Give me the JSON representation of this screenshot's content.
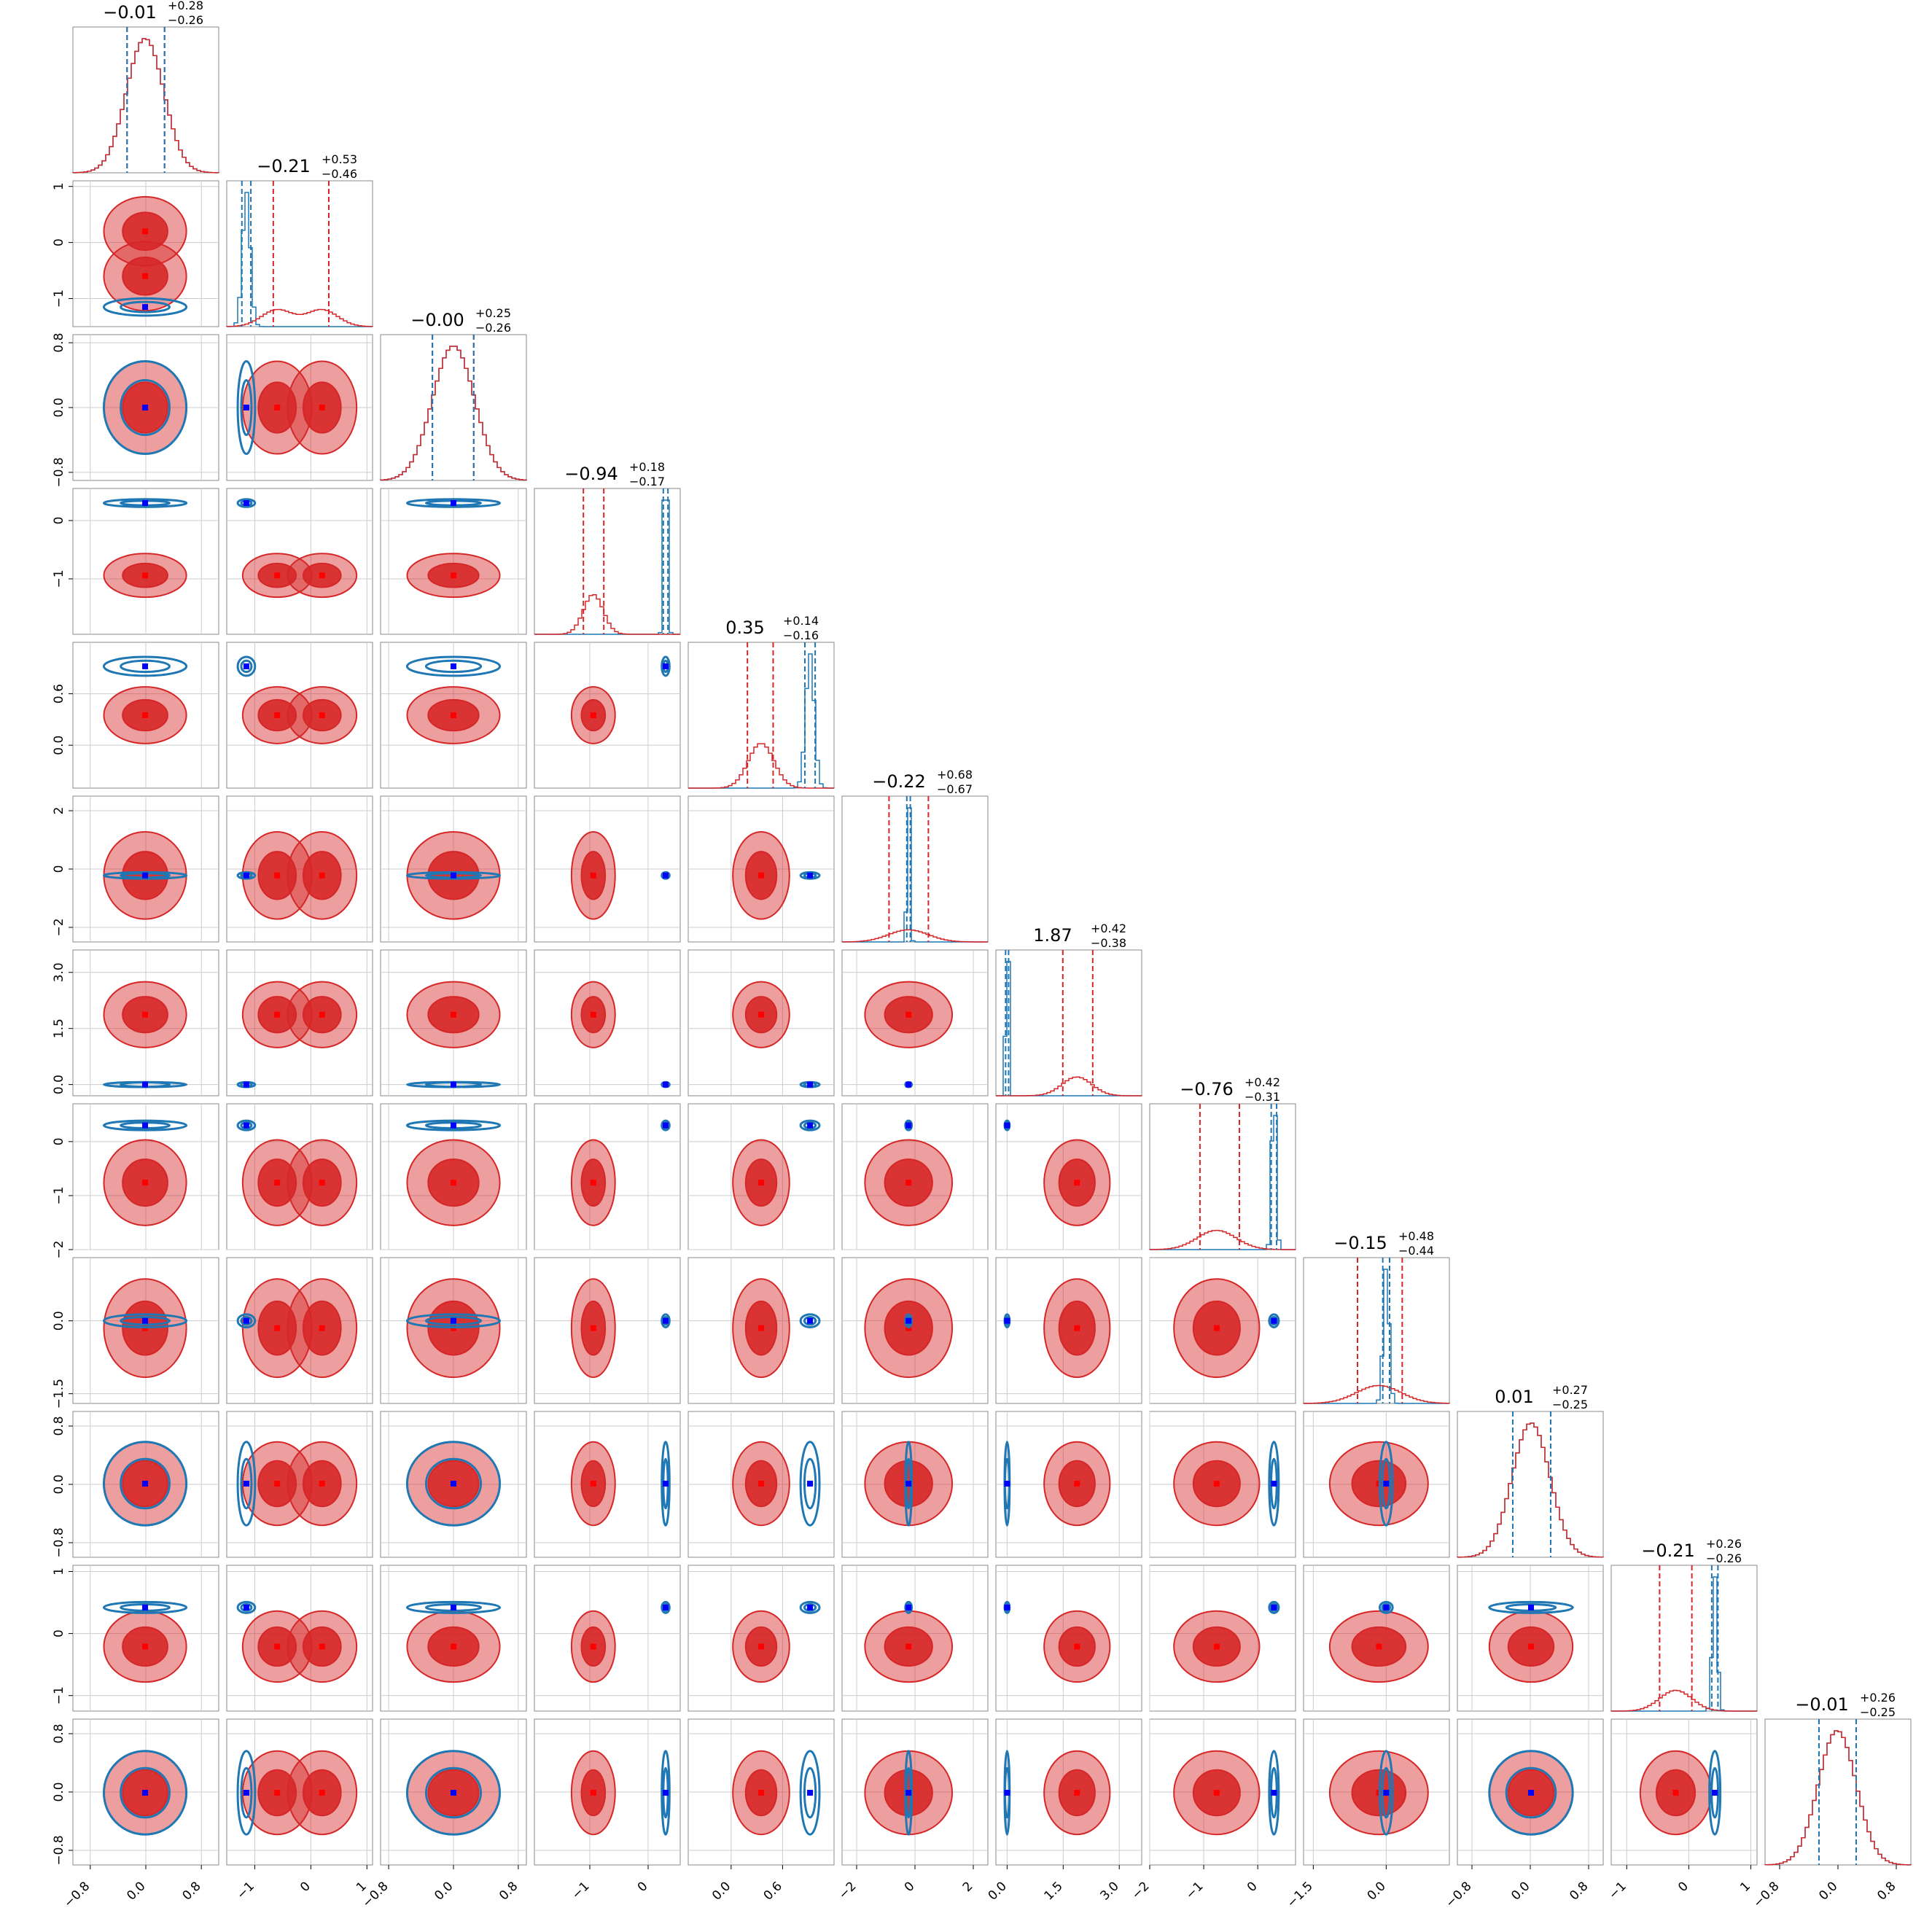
{
  "chart_data": {
    "type": "corner",
    "n_params": 12,
    "colors": {
      "red": "#d62728",
      "blue": "#1f77b4",
      "marker_blue": "#0000ff",
      "marker_red": "#ff0000",
      "grid": "#cccccc"
    },
    "titles": [
      {
        "main": "−0.01",
        "sup": "+0.28",
        "sub": "−0.26"
      },
      {
        "main": "−0.21",
        "sup": "+0.53",
        "sub": "−0.46"
      },
      {
        "main": "−0.00",
        "sup": "+0.25",
        "sub": "−0.26"
      },
      {
        "main": "−0.94",
        "sup": "+0.18",
        "sub": "−0.17"
      },
      {
        "main": "0.35",
        "sup": "+0.14",
        "sub": "−0.16"
      },
      {
        "main": "−0.22",
        "sup": "+0.68",
        "sub": "−0.67"
      },
      {
        "main": "1.87",
        "sup": "+0.42",
        "sub": "−0.38"
      },
      {
        "main": "−0.76",
        "sup": "+0.42",
        "sub": "−0.31"
      },
      {
        "main": "−0.15",
        "sup": "+0.48",
        "sub": "−0.44"
      },
      {
        "main": "0.01",
        "sup": "+0.27",
        "sub": "−0.25"
      },
      {
        "main": "−0.21",
        "sup": "+0.26",
        "sub": "−0.26"
      },
      {
        "main": "−0.01",
        "sup": "+0.26",
        "sub": "−0.25"
      }
    ],
    "params": [
      {
        "range": [
          -1.05,
          1.05
        ],
        "ticks": [
          -0.8,
          0.0,
          0.8
        ],
        "tick_labels": [
          "−0.8",
          "0.0",
          "0.8"
        ],
        "red": {
          "center": -0.01,
          "sd": 0.27
        },
        "blue": {
          "center": -0.01,
          "sd": 0.27
        },
        "red_quantiles": [
          -0.27,
          0.27
        ],
        "blue_quantiles": [
          -0.27,
          0.27
        ]
      },
      {
        "range": [
          -1.5,
          1.1
        ],
        "ticks": [
          -1,
          0,
          1
        ],
        "tick_labels": [
          "−1",
          "0",
          "1"
        ],
        "red": {
          "modes": [
            -0.6,
            0.2
          ],
          "sd": 0.28
        },
        "blue": {
          "center": -1.15,
          "sd": 0.07
        },
        "red_quantiles": [
          -0.67,
          0.32
        ],
        "blue_quantiles": [
          -1.23,
          -1.07
        ]
      },
      {
        "range": [
          -0.9,
          0.9
        ],
        "ticks": [
          -0.8,
          0.0,
          0.8
        ],
        "tick_labels": [
          "−0.8",
          "0.0",
          "0.8"
        ],
        "red": {
          "center": -0.0,
          "sd": 0.26
        },
        "blue": {
          "center": 0.0,
          "sd": 0.26
        },
        "red_quantiles": [
          -0.26,
          0.25
        ],
        "blue_quantiles": [
          -0.26,
          0.25
        ]
      },
      {
        "range": [
          -1.95,
          0.55
        ],
        "ticks": [
          -1,
          0
        ],
        "tick_labels": [
          "−1",
          "0"
        ],
        "red": {
          "center": -0.94,
          "sd": 0.17
        },
        "blue": {
          "center": 0.3,
          "sd": 0.03
        },
        "red_quantiles": [
          -1.11,
          -0.76
        ],
        "blue_quantiles": [
          0.26,
          0.34
        ]
      },
      {
        "range": [
          -0.5,
          1.2
        ],
        "ticks": [
          0.0,
          0.6
        ],
        "tick_labels": [
          "0.0",
          "0.6"
        ],
        "red": {
          "center": 0.35,
          "sd": 0.15
        },
        "blue": {
          "center": 0.92,
          "sd": 0.05
        },
        "red_quantiles": [
          0.19,
          0.49
        ],
        "blue_quantiles": [
          0.86,
          0.98
        ]
      },
      {
        "range": [
          -2.5,
          2.5
        ],
        "ticks": [
          -2,
          0,
          2
        ],
        "tick_labels": [
          "−2",
          "0",
          "2"
        ],
        "red": {
          "center": -0.22,
          "sd": 0.68
        },
        "blue": {
          "center": -0.22,
          "sd": 0.05
        },
        "red_quantiles": [
          -0.89,
          0.46
        ],
        "blue_quantiles": [
          -0.28,
          -0.16
        ]
      },
      {
        "range": [
          -0.3,
          3.6
        ],
        "ticks": [
          0.0,
          1.5,
          3.0
        ],
        "tick_labels": [
          "0.0",
          "1.5",
          "3.0"
        ],
        "red": {
          "center": 1.87,
          "sd": 0.4
        },
        "blue": {
          "center": 0.0,
          "sd": 0.03
        },
        "red_quantiles": [
          1.49,
          2.29
        ],
        "blue_quantiles": [
          -0.04,
          0.04
        ]
      },
      {
        "range": [
          -2.0,
          0.7
        ],
        "ticks": [
          -2,
          -1,
          0
        ],
        "tick_labels": [
          "−2",
          "−1",
          "0"
        ],
        "red": {
          "center": -0.76,
          "sd": 0.36
        },
        "blue": {
          "center": 0.3,
          "sd": 0.04
        },
        "red_quantiles": [
          -1.07,
          -0.34
        ],
        "blue_quantiles": [
          0.25,
          0.35
        ]
      },
      {
        "range": [
          -1.7,
          1.3
        ],
        "ticks": [
          -1.5,
          0.0
        ],
        "tick_labels": [
          "−1.5",
          "0.0"
        ],
        "red": {
          "center": -0.15,
          "sd": 0.46
        },
        "blue": {
          "center": 0.0,
          "sd": 0.06
        },
        "red_quantiles": [
          -0.59,
          0.33
        ],
        "blue_quantiles": [
          -0.07,
          0.07
        ]
      },
      {
        "range": [
          -1.0,
          1.0
        ],
        "ticks": [
          -0.8,
          0.0,
          0.8
        ],
        "tick_labels": [
          "−0.8",
          "0.0",
          "0.8"
        ],
        "red": {
          "center": 0.01,
          "sd": 0.26
        },
        "blue": {
          "center": 0.01,
          "sd": 0.26
        },
        "red_quantiles": [
          -0.24,
          0.28
        ],
        "blue_quantiles": [
          -0.24,
          0.28
        ]
      },
      {
        "range": [
          -1.25,
          1.1
        ],
        "ticks": [
          -1,
          0,
          1
        ],
        "tick_labels": [
          "−1",
          "0",
          "1"
        ],
        "red": {
          "center": -0.21,
          "sd": 0.26
        },
        "blue": {
          "center": 0.42,
          "sd": 0.04
        },
        "red_quantiles": [
          -0.47,
          0.05
        ],
        "blue_quantiles": [
          0.37,
          0.47
        ]
      },
      {
        "range": [
          -1.0,
          1.0
        ],
        "ticks": [
          -0.8,
          0.0,
          0.8
        ],
        "tick_labels": [
          "−0.8",
          "0.0",
          "0.8"
        ],
        "red": {
          "center": -0.01,
          "sd": 0.26
        },
        "blue": {
          "center": -0.01,
          "sd": 0.26
        },
        "red_quantiles": [
          -0.26,
          0.25
        ],
        "blue_quantiles": [
          -0.26,
          0.25
        ]
      }
    ],
    "marginal_style": "step histograms with dashed 16/50/84 percentile lines",
    "contour_style": "filled red 2D density contours with blue outline contours, square markers at sample means"
  }
}
